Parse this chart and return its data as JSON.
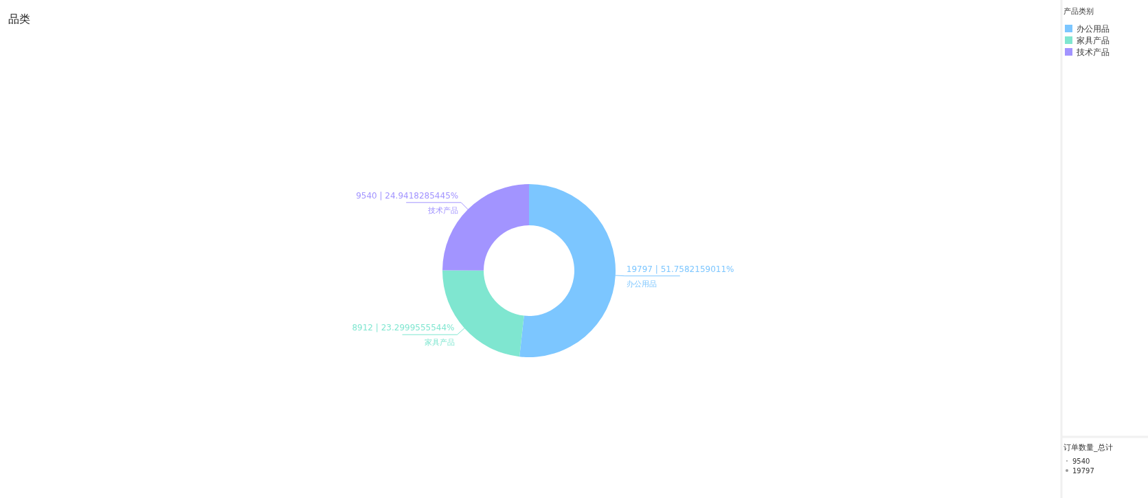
{
  "chart_data": {
    "type": "donut",
    "title": "品类",
    "legend_title": "产品类别",
    "legend": "top right",
    "categories": [
      "办公用品",
      "家具产品",
      "技术产品"
    ],
    "values": [
      19797,
      8912,
      9540
    ],
    "colors": [
      "#7cc6ff",
      "#7fe6d0",
      "#a294ff"
    ],
    "value_labels": [
      "19797 | 51.7582159011%",
      "8912 | 23.2999555544%",
      "9540 | 24.9418285445%"
    ],
    "annotations": [
      "订单数量_总计",
      "9540",
      "19797"
    ]
  }
}
